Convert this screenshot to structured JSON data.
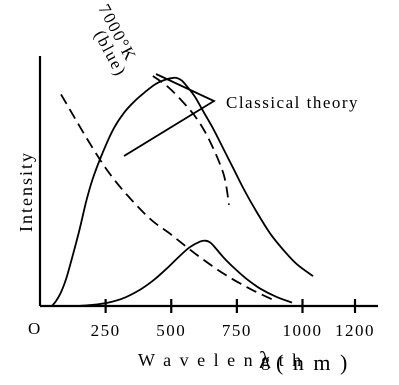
{
  "chart_data": {
    "type": "line",
    "title": "",
    "xlabel": "W a v e l e n g t h",
    "xlabel_symbol": "λ",
    "xlabel_unit": "( n m )",
    "ylabel": "Intensity",
    "origin_label": "O",
    "xticks": [
      250,
      500,
      750,
      1000,
      1200
    ],
    "xtick_labels": [
      "250",
      "500",
      "750",
      "1000",
      "1200"
    ],
    "xlim": [
      0,
      1300
    ],
    "ylim": [
      0,
      1.0
    ],
    "grid": false,
    "legend": "none",
    "annotations": {
      "temperature": "7000°K",
      "temperature_note": "(blue)",
      "classical_theory": "Classical theory"
    },
    "series": [
      {
        "style": "solid",
        "x": [
          45,
          60,
          80,
          100,
          120,
          150,
          175,
          200,
          240,
          280,
          320,
          360,
          400,
          440,
          480,
          510,
          525,
          540,
          560,
          590,
          620,
          660,
          700,
          740,
          780,
          830,
          880,
          930,
          980,
          1040
        ],
        "y": [
          0.0,
          0.02,
          0.06,
          0.12,
          0.2,
          0.33,
          0.45,
          0.55,
          0.67,
          0.77,
          0.84,
          0.89,
          0.93,
          0.965,
          0.985,
          0.992,
          0.99,
          0.98,
          0.955,
          0.91,
          0.85,
          0.77,
          0.68,
          0.59,
          0.5,
          0.4,
          0.31,
          0.24,
          0.18,
          0.13
        ]
      },
      {
        "style": "solid",
        "x": [
          140,
          200,
          260,
          320,
          380,
          430,
          480,
          530,
          570,
          610,
          630,
          650,
          670,
          700,
          740,
          790,
          840,
          900,
          960
        ],
        "y": [
          0.0,
          0.005,
          0.015,
          0.035,
          0.07,
          0.11,
          0.16,
          0.215,
          0.255,
          0.28,
          0.284,
          0.275,
          0.25,
          0.21,
          0.165,
          0.115,
          0.075,
          0.04,
          0.015
        ]
      },
      {
        "style": "dashed",
        "x": [
          80,
          250,
          400,
          500,
          600,
          700,
          800,
          900
        ],
        "y": [
          0.92,
          0.6,
          0.4,
          0.31,
          0.22,
          0.14,
          0.075,
          0.02
        ]
      },
      {
        "style": "dashed",
        "x": [
          430,
          490,
          550,
          600,
          650,
          700,
          720
        ],
        "y": [
          1.0,
          0.95,
          0.88,
          0.81,
          0.71,
          0.57,
          0.44
        ]
      }
    ]
  }
}
